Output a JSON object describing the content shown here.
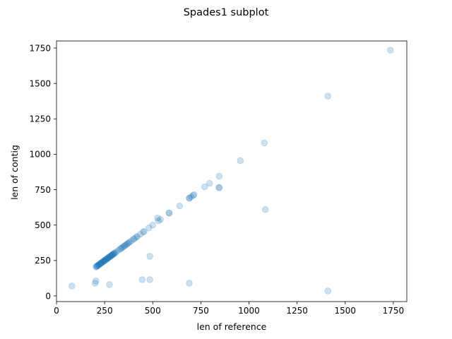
{
  "chart_data": {
    "type": "scatter",
    "title": "Spades1 subplot",
    "xlabel": "len of reference",
    "ylabel": "len of contig",
    "xlim": [
      0,
      1820
    ],
    "ylim": [
      -40,
      1800
    ],
    "xticks": [
      0,
      250,
      500,
      750,
      1000,
      1250,
      1500,
      1750
    ],
    "yticks": [
      0,
      250,
      500,
      750,
      1000,
      1250,
      1500,
      1750
    ],
    "grid": false,
    "legend": "none",
    "marker_color": "#1f77b4",
    "marker_alpha": 0.22,
    "series": [
      {
        "points": [
          [
            1735,
            1735
          ],
          [
            1410,
            1410
          ],
          [
            1080,
            1080
          ],
          [
            955,
            955
          ],
          [
            845,
            845
          ],
          [
            795,
            795
          ],
          [
            770,
            770
          ],
          [
            845,
            765
          ],
          [
            845,
            765
          ],
          [
            715,
            715
          ],
          [
            710,
            710
          ],
          [
            700,
            700
          ],
          [
            690,
            690
          ],
          [
            690,
            690
          ],
          [
            640,
            635
          ],
          [
            585,
            585
          ],
          [
            585,
            585
          ],
          [
            525,
            550
          ],
          [
            540,
            540
          ],
          [
            530,
            530
          ],
          [
            500,
            500
          ],
          [
            480,
            480
          ],
          [
            455,
            455
          ],
          [
            450,
            450
          ],
          [
            435,
            435
          ],
          [
            420,
            420
          ],
          [
            415,
            415
          ],
          [
            405,
            405
          ],
          [
            400,
            400
          ],
          [
            390,
            390
          ],
          [
            380,
            380
          ],
          [
            375,
            375
          ],
          [
            370,
            370
          ],
          [
            365,
            365
          ],
          [
            360,
            360
          ],
          [
            355,
            355
          ],
          [
            350,
            350
          ],
          [
            345,
            345
          ],
          [
            340,
            340
          ],
          [
            335,
            335
          ],
          [
            330,
            330
          ],
          [
            320,
            320
          ],
          [
            310,
            310
          ],
          [
            305,
            305
          ],
          [
            300,
            300
          ],
          [
            298,
            298
          ],
          [
            295,
            295
          ],
          [
            292,
            292
          ],
          [
            290,
            290
          ],
          [
            288,
            288
          ],
          [
            285,
            285
          ],
          [
            282,
            282
          ],
          [
            280,
            280
          ],
          [
            277,
            277
          ],
          [
            275,
            275
          ],
          [
            272,
            272
          ],
          [
            270,
            270
          ],
          [
            268,
            268
          ],
          [
            265,
            265
          ],
          [
            262,
            262
          ],
          [
            260,
            260
          ],
          [
            257,
            257
          ],
          [
            255,
            255
          ],
          [
            252,
            252
          ],
          [
            250,
            250
          ],
          [
            247,
            247
          ],
          [
            245,
            245
          ],
          [
            242,
            242
          ],
          [
            240,
            240
          ],
          [
            237,
            237
          ],
          [
            235,
            235
          ],
          [
            232,
            232
          ],
          [
            230,
            230
          ],
          [
            228,
            228
          ],
          [
            225,
            225
          ],
          [
            222,
            222
          ],
          [
            220,
            220
          ],
          [
            218,
            218
          ],
          [
            215,
            215
          ],
          [
            212,
            212
          ],
          [
            210,
            210
          ],
          [
            208,
            208
          ],
          [
            205,
            205
          ],
          [
            1085,
            610
          ],
          [
            485,
            280
          ],
          [
            445,
            115
          ],
          [
            485,
            115
          ],
          [
            690,
            90
          ],
          [
            1410,
            35
          ],
          [
            205,
            105
          ],
          [
            200,
            90
          ],
          [
            275,
            80
          ],
          [
            80,
            70
          ]
        ]
      }
    ]
  }
}
